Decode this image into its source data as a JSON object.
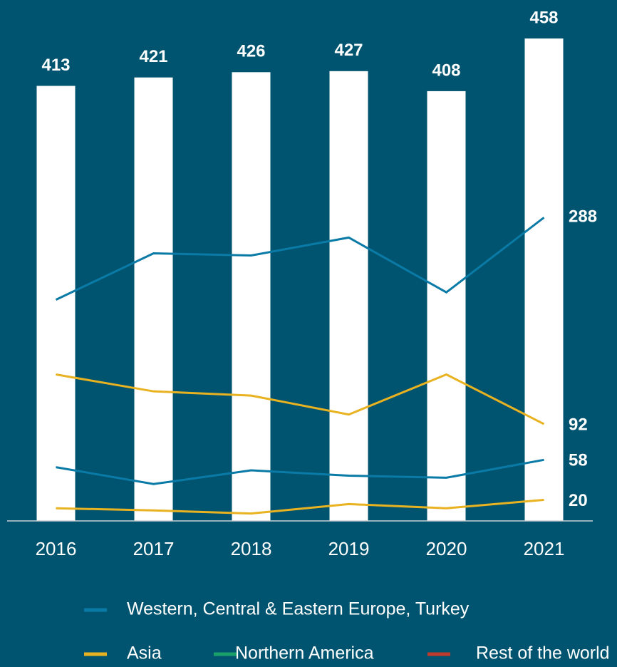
{
  "chart_data": {
    "type": "bar_line",
    "categories": [
      "2016",
      "2017",
      "2018",
      "2019",
      "2020",
      "2021"
    ],
    "values": [
      413,
      421,
      426,
      427,
      408,
      458
    ],
    "color": "#ffffff",
    "ylim": [
      0,
      458
    ],
    "series": [
      {
        "name": "Western, Central & Eastern Europe, Turkey",
        "color": "#0a7aa6",
        "legend_color": "#0a7aa6",
        "values": [
          210,
          254,
          252,
          269,
          217,
          288
        ]
      },
      {
        "name": "Asia",
        "color": "#e8b220",
        "legend_color": "#e8b220",
        "values": [
          139,
          123,
          119,
          101,
          139,
          92
        ]
      },
      {
        "name": "Northern America",
        "color": "#0a7aa6",
        "legend_color": "#1aa06a",
        "values": [
          51,
          35,
          48,
          43,
          41,
          58
        ]
      },
      {
        "name": "Rest of the world",
        "color": "#e8b220",
        "legend_color": "#c0392b",
        "values": [
          12,
          10,
          7,
          16,
          12,
          20
        ]
      }
    ]
  }
}
